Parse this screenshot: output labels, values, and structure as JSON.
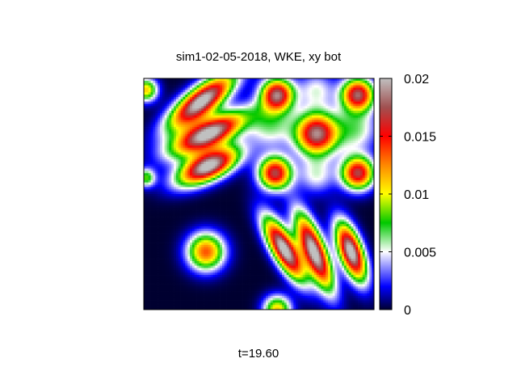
{
  "chart_data": {
    "type": "heatmap",
    "title": "sim1-02-05-2018, WKE, xy bot",
    "footer": "t=19.60",
    "colorbar": {
      "range": [
        0,
        0.02
      ],
      "tick_values": [
        0,
        0.005,
        0.01,
        0.015,
        0.02
      ],
      "tick_labels": [
        "0",
        "0.005",
        "0.01",
        "0.015",
        "0.02"
      ],
      "palette": [
        {
          "v": 0.0,
          "color": "#000030"
        },
        {
          "v": 0.002,
          "color": "#0000ff"
        },
        {
          "v": 0.005,
          "color": "#ffffff"
        },
        {
          "v": 0.0075,
          "color": "#00c800"
        },
        {
          "v": 0.01,
          "color": "#ffff00"
        },
        {
          "v": 0.0125,
          "color": "#ff8800"
        },
        {
          "v": 0.015,
          "color": "#ff0000"
        },
        {
          "v": 0.0175,
          "color": "#a05050"
        },
        {
          "v": 0.02,
          "color": "#c0c0c0"
        }
      ]
    },
    "grid": {
      "size": 100,
      "domain": [
        0,
        1
      ]
    },
    "features": [
      {
        "kind": "ellipse",
        "cx": 0.25,
        "cy": 0.9,
        "rx": 0.17,
        "ry": 0.06,
        "angle": 38,
        "amp": 0.021
      },
      {
        "kind": "ellipse",
        "cx": 0.28,
        "cy": 0.76,
        "rx": 0.17,
        "ry": 0.06,
        "angle": 25,
        "amp": 0.021
      },
      {
        "kind": "ellipse",
        "cx": 0.28,
        "cy": 0.62,
        "rx": 0.14,
        "ry": 0.06,
        "angle": 25,
        "amp": 0.021
      },
      {
        "kind": "ellipse",
        "cx": 0.61,
        "cy": 0.26,
        "rx": 0.15,
        "ry": 0.05,
        "angle": -60,
        "amp": 0.021
      },
      {
        "kind": "ellipse",
        "cx": 0.74,
        "cy": 0.25,
        "rx": 0.17,
        "ry": 0.05,
        "angle": -68,
        "amp": 0.021
      },
      {
        "kind": "ellipse",
        "cx": 0.9,
        "cy": 0.25,
        "rx": 0.13,
        "ry": 0.05,
        "angle": -70,
        "amp": 0.021
      },
      {
        "kind": "blob",
        "cx": 0.58,
        "cy": 0.93,
        "r": 0.07,
        "amp": 0.0175
      },
      {
        "kind": "blob",
        "cx": 0.93,
        "cy": 0.93,
        "r": 0.07,
        "amp": 0.0175
      },
      {
        "kind": "blob",
        "cx": 0.75,
        "cy": 0.76,
        "r": 0.09,
        "amp": 0.0185
      },
      {
        "kind": "blob",
        "cx": 0.57,
        "cy": 0.59,
        "r": 0.07,
        "amp": 0.017
      },
      {
        "kind": "blob",
        "cx": 0.93,
        "cy": 0.59,
        "r": 0.07,
        "amp": 0.017
      },
      {
        "kind": "blob",
        "cx": 0.27,
        "cy": 0.25,
        "r": 0.08,
        "amp": 0.0135
      },
      {
        "kind": "blob",
        "cx": 0.58,
        "cy": 0.0,
        "r": 0.06,
        "amp": 0.011
      },
      {
        "kind": "blob",
        "cx": 0.01,
        "cy": 0.57,
        "r": 0.04,
        "amp": 0.008
      },
      {
        "kind": "blob",
        "cx": 0.01,
        "cy": 0.95,
        "r": 0.05,
        "amp": 0.011
      },
      {
        "kind": "blob",
        "cx": 0.55,
        "cy": 0.8,
        "r": 0.1,
        "amp": 0.006
      },
      {
        "kind": "blob",
        "cx": 0.92,
        "cy": 0.78,
        "r": 0.1,
        "amp": 0.006
      },
      {
        "kind": "blob",
        "cx": 0.75,
        "cy": 0.95,
        "r": 0.08,
        "amp": 0.005
      },
      {
        "kind": "blob",
        "cx": 0.75,
        "cy": 0.58,
        "r": 0.08,
        "amp": 0.005
      }
    ]
  }
}
